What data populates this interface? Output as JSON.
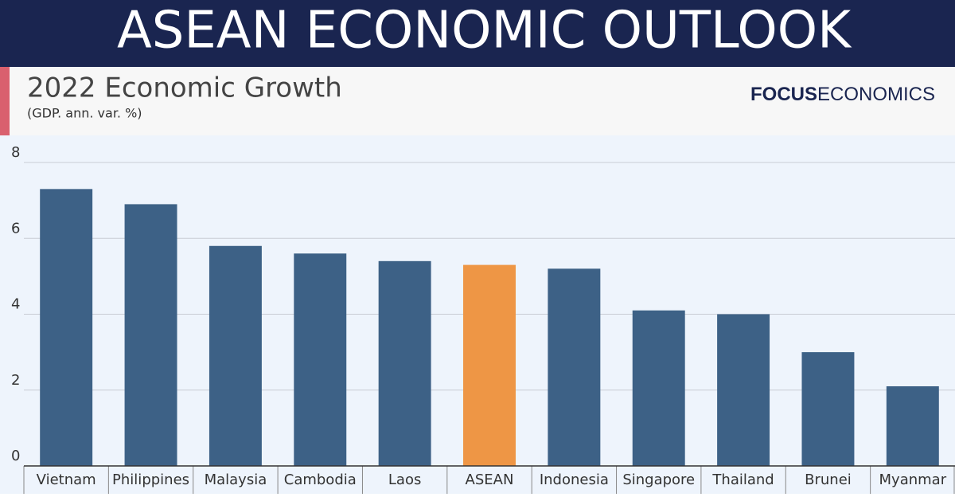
{
  "header": {
    "title": "ASEAN ECONOMIC OUTLOOK",
    "brand": [
      "FOCUS",
      "ECONOMICS"
    ]
  },
  "chart_data": {
    "type": "bar",
    "title": "2022 Economic Growth",
    "subtitle": "(GDP. ann. var. %)",
    "categories": [
      "Vietnam",
      "Philippines",
      "Malaysia",
      "Cambodia",
      "Laos",
      "ASEAN",
      "Indonesia",
      "Singapore",
      "Thailand",
      "Brunei",
      "Myanmar"
    ],
    "values": [
      7.3,
      6.9,
      5.8,
      5.6,
      5.4,
      5.3,
      5.2,
      4.1,
      4.0,
      3.0,
      2.1
    ],
    "colors": [
      "#3d6186",
      "#3d6186",
      "#3d6186",
      "#3d6186",
      "#3d6186",
      "#ee9645",
      "#3d6186",
      "#3d6186",
      "#3d6186",
      "#3d6186",
      "#3d6186"
    ],
    "ylim": [
      0,
      8
    ],
    "yticks": [
      0,
      2,
      4,
      6,
      8
    ],
    "grid": true
  }
}
